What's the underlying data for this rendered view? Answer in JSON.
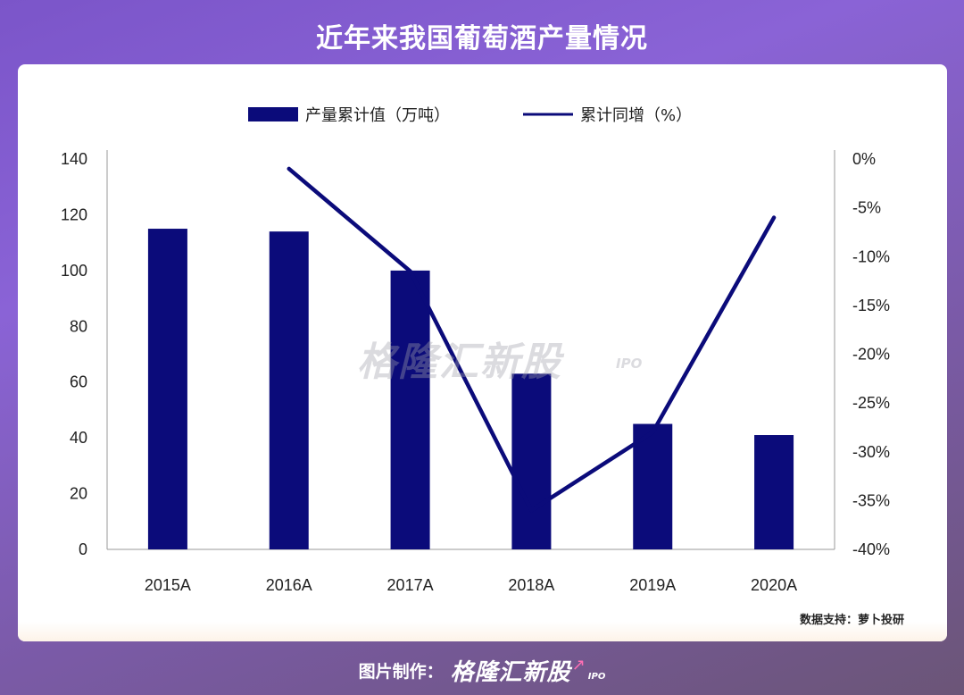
{
  "page": {
    "title": "近年来我国葡萄酒产量情况",
    "watermark": "格隆汇新股",
    "watermark_sub": "IPO",
    "source": "数据支持：萝卜投研",
    "footer_label": "图片制作：",
    "footer_brand": "格隆汇新股",
    "footer_brand_sub": "IPO"
  },
  "chart_data": {
    "type": "bar",
    "categories": [
      "2015A",
      "2016A",
      "2017A",
      "2018A",
      "2019A",
      "2020A"
    ],
    "series": [
      {
        "name": "产量累计值（万吨）",
        "type": "bar",
        "axis": "left",
        "color": "#0b0b7a",
        "values": [
          115,
          114,
          100,
          63,
          45,
          41
        ]
      },
      {
        "name": "累计同增（%）",
        "type": "line",
        "axis": "right",
        "color": "#0b0b7a",
        "values": [
          null,
          -1,
          -11.5,
          -36,
          -28,
          -6
        ]
      }
    ],
    "y_left": {
      "min": 0,
      "max": 140,
      "ticks": [
        "0",
        "20",
        "40",
        "60",
        "80",
        "100",
        "120",
        "140"
      ]
    },
    "y_right": {
      "min": -40,
      "max": 0,
      "ticks": [
        "0%",
        "-5%",
        "-10%",
        "-15%",
        "-20%",
        "-25%",
        "-30%",
        "-35%",
        "-40%"
      ]
    },
    "legend_position": "top",
    "grid": false
  }
}
